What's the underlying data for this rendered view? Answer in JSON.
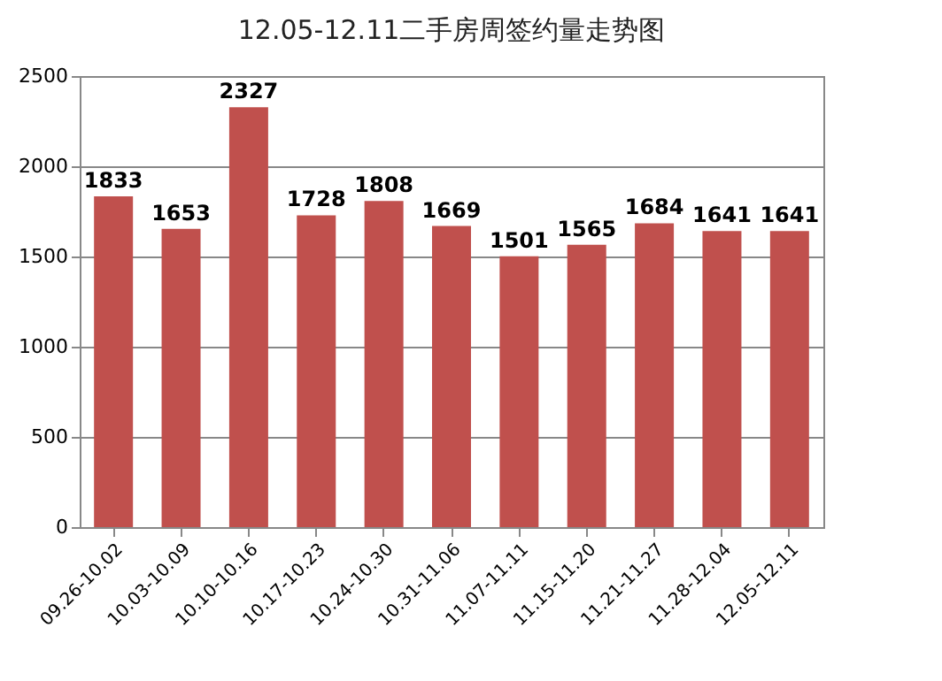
{
  "chart_data": {
    "type": "bar",
    "title": "12.05-12.11二手房周签约量走势图",
    "categories": [
      "09.26-10.02",
      "10.03-10.09",
      "10.10-10.16",
      "10.17-10.23",
      "10.24-10.30",
      "10.31-11.06",
      "11.07-11.11",
      "11.15-11.20",
      "11.21-11.27",
      "11.28-12.04",
      "12.05-12.11"
    ],
    "values": [
      1833,
      1653,
      2327,
      1728,
      1808,
      1669,
      1501,
      1565,
      1684,
      1641,
      1641
    ],
    "color": "#c0504d",
    "ylim": [
      0,
      2500
    ],
    "yticks": [
      0,
      500,
      1000,
      1500,
      2000,
      2500
    ],
    "grid": "y",
    "data_labels": true
  }
}
